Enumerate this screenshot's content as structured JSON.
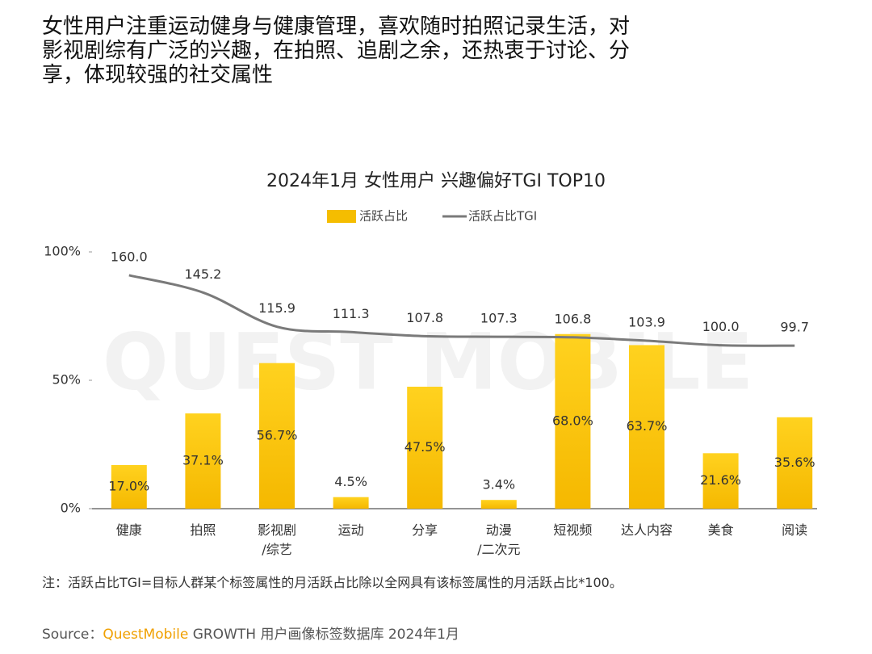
{
  "heading": [
    "女性用户注重运动健身与健康管理，喜欢随时拍照记录生活，对",
    "影视剧综有广泛的兴趣，在拍照、追剧之余，还热衷于讨论、分",
    "享，体现较强的社交属性"
  ],
  "chart_data": {
    "type": "bar_line",
    "title": "2024年1月 女性用户 兴趣偏好TGI TOP10",
    "watermark": "QUEST MOBILE",
    "categories": [
      "健康",
      "拍照",
      "影视剧\n/综艺",
      "运动",
      "分享",
      "动漫\n/二次元",
      "短视频",
      "达人内容",
      "美食",
      "阅读"
    ],
    "series": [
      {
        "name": "活跃占比",
        "type": "bar",
        "color": "#f5bd00",
        "values": [
          17.0,
          37.1,
          56.7,
          4.5,
          47.5,
          3.4,
          68.0,
          63.7,
          21.6,
          35.6
        ],
        "value_labels": [
          "17.0%",
          "37.1%",
          "56.7%",
          "4.5%",
          "47.5%",
          "3.4%",
          "68.0%",
          "63.7%",
          "21.6%",
          "35.6%"
        ]
      },
      {
        "name": "活跃占比TGI",
        "type": "line",
        "axis": "y2",
        "color": "#7a7a7a",
        "values": [
          160.0,
          145.2,
          115.9,
          111.3,
          107.8,
          107.3,
          106.8,
          103.9,
          100.0,
          99.7
        ],
        "value_labels": [
          "160.0",
          "145.2",
          "115.9",
          "111.3",
          "107.8",
          "107.3",
          "106.8",
          "103.9",
          "100.0",
          "99.7"
        ]
      }
    ],
    "ylim": [
      0,
      100
    ],
    "yticks": [
      {
        "value": 0,
        "label": "0%"
      },
      {
        "value": 50,
        "label": "50%"
      },
      {
        "value": 100,
        "label": "100%"
      }
    ],
    "y2lim": [
      -40,
      180
    ],
    "grid": false,
    "legend": "top"
  },
  "note": "注：活跃占比TGI=目标人群某个标签属性的月活跃占比除以全网具有该标签属性的月活跃占比*100。",
  "source": {
    "label": "Source：",
    "brand": "QuestMobile",
    "text": " GROWTH 用户画像标签数据库 2024年1月"
  }
}
